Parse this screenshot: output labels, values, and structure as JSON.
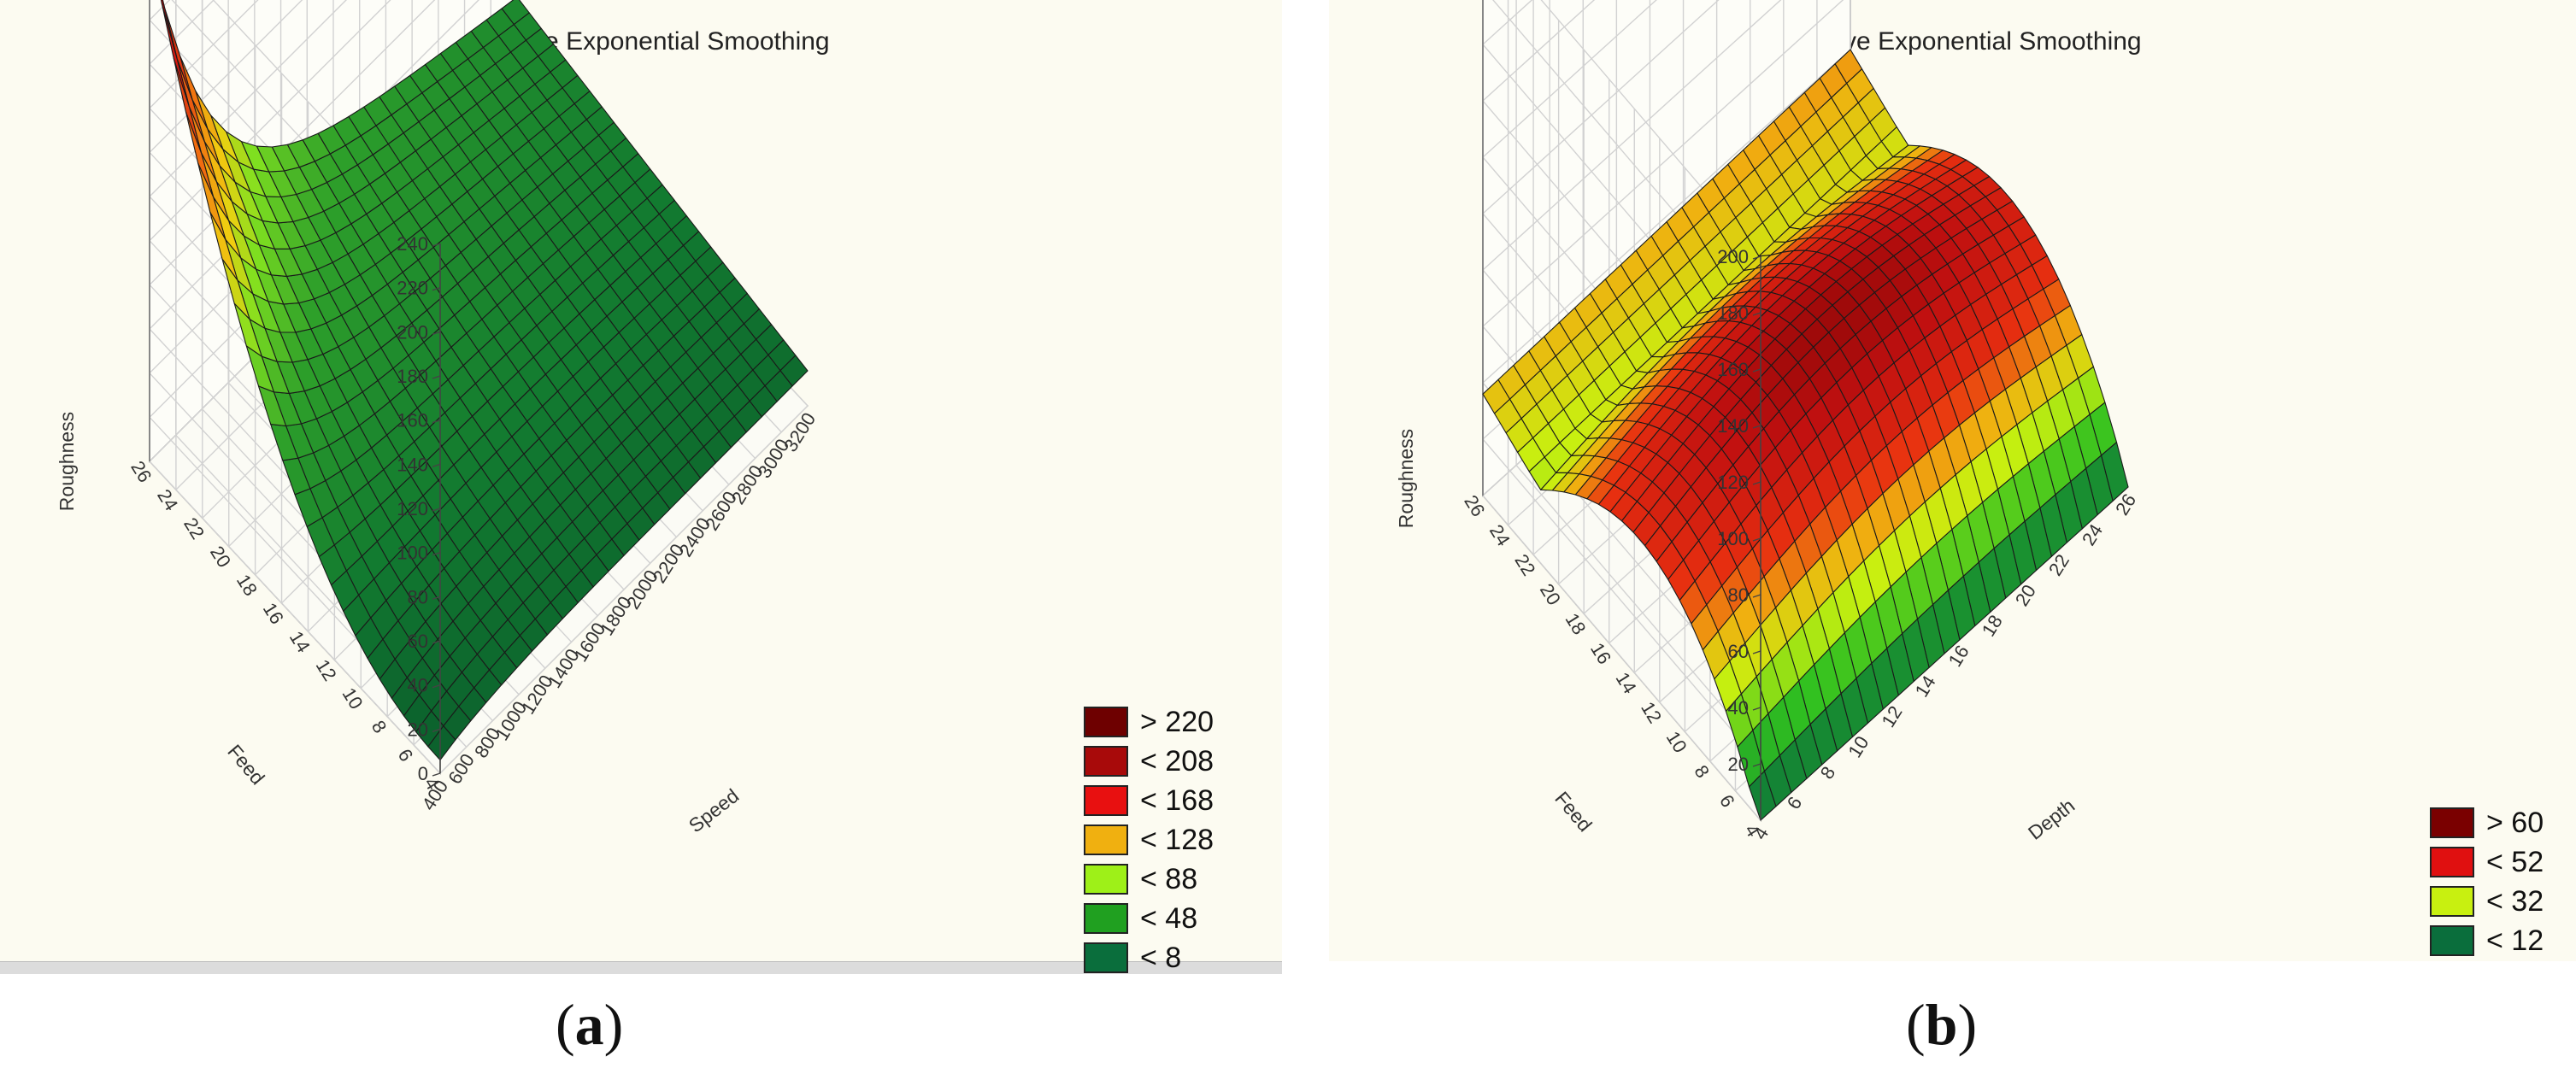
{
  "chart_data": [
    {
      "type": "surface",
      "panel_label": "a",
      "title": "Roughness = Negative Exponential Smoothing",
      "x": {
        "label": "Speed",
        "ticks": [
          400,
          600,
          800,
          1000,
          1200,
          1400,
          1600,
          1800,
          2000,
          2200,
          2400,
          2600,
          2800,
          3000,
          3200
        ],
        "range": [
          400,
          3200
        ]
      },
      "y": {
        "label": "Feed",
        "ticks": [
          4,
          6,
          8,
          10,
          12,
          14,
          16,
          18,
          20,
          22,
          24,
          26
        ],
        "range": [
          4,
          26
        ]
      },
      "z": {
        "label": "Roughness",
        "ticks": [
          0,
          20,
          40,
          60,
          80,
          100,
          120,
          140,
          160,
          180,
          200,
          220,
          240
        ],
        "range": [
          0,
          240
        ]
      },
      "surface_corners": {
        "speed_400_feed_4": 0,
        "speed_400_feed_26": 228,
        "speed_3200_feed_4": 0,
        "speed_3200_feed_26": 92
      },
      "legend": [
        {
          "label": "> 220",
          "color": "#6e0000"
        },
        {
          "label": "< 208",
          "color": "#a80a0a"
        },
        {
          "label": "< 168",
          "color": "#e81010"
        },
        {
          "label": "< 128",
          "color": "#f0b010"
        },
        {
          "label": "< 88",
          "color": "#9ef018"
        },
        {
          "label": "< 48",
          "color": "#20a020"
        },
        {
          "label": "< 8",
          "color": "#0a6e3c"
        }
      ]
    },
    {
      "type": "surface",
      "panel_label": "b",
      "title": "Roughness = Negative Exponential Smoothing",
      "x": {
        "label": "Depth",
        "ticks": [
          4,
          6,
          8,
          10,
          12,
          14,
          16,
          18,
          20,
          22,
          24,
          26
        ],
        "range": [
          4,
          26
        ]
      },
      "y": {
        "label": "Feed",
        "ticks": [
          4,
          6,
          8,
          10,
          12,
          14,
          16,
          18,
          20,
          22,
          24,
          26
        ],
        "range": [
          4,
          26
        ]
      },
      "z": {
        "label": "Roughness",
        "ticks": [
          20,
          40,
          60,
          80,
          100,
          120,
          140,
          160,
          180,
          200
        ],
        "range": [
          0,
          200
        ]
      },
      "surface_corners": {
        "depth_4_feed_4": 0,
        "depth_4_feed_26": 45,
        "depth_26_feed_4": 10,
        "depth_26_feed_26": 45
      },
      "legend": [
        {
          "label": "> 60",
          "color": "#7a0000"
        },
        {
          "label": "< 52",
          "color": "#e01010"
        },
        {
          "label": "< 32",
          "color": "#c8f010"
        },
        {
          "label": "< 12",
          "color": "#0a6e3c"
        }
      ]
    }
  ]
}
